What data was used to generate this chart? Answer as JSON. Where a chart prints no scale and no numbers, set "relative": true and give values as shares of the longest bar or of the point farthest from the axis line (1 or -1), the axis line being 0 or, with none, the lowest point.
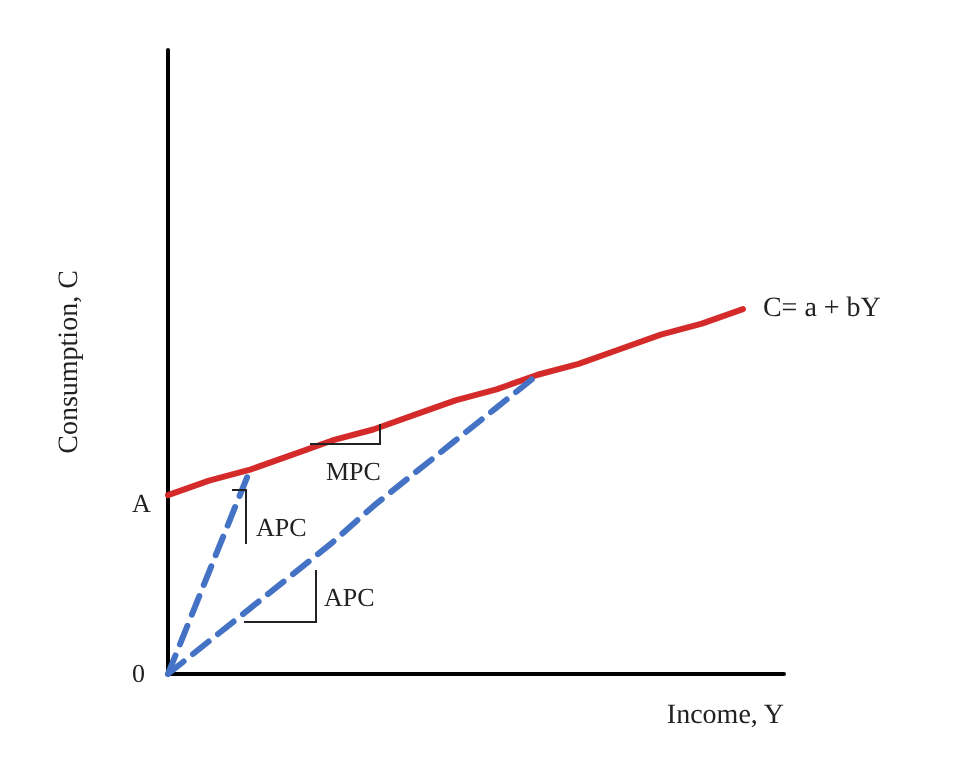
{
  "chart_data": {
    "type": "line",
    "relative": true,
    "xlabel": "Income, Y",
    "ylabel": "Consumption, C",
    "grid": false,
    "legend": false,
    "marker": "none",
    "categories": [
      null,
      null,
      null,
      null,
      null,
      null,
      null,
      null,
      null,
      null,
      null,
      null,
      null,
      null,
      null,
      null
    ],
    "series": [
      {
        "name": "C= a + bY",
        "color": "#d42a2a",
        "values": [
          0.49,
          0.53,
          0.56,
          0.6,
          0.64,
          0.67,
          0.71,
          0.75,
          0.78,
          0.82,
          0.85,
          0.89,
          0.93,
          0.96,
          1,
          null
        ],
        "line_style": "solid"
      },
      {
        "color": "#4472c4",
        "values": [
          0,
          0.28,
          0.56,
          null,
          null,
          null,
          null,
          null,
          null,
          null,
          null,
          null,
          null,
          null,
          null,
          null
        ],
        "line_style": "dashed"
      },
      {
        "color": "#4472c4",
        "values": [
          0,
          0.09,
          0.18,
          0.27,
          0.36,
          0.46,
          0.55,
          0.64,
          0.73,
          0.82,
          null,
          null,
          null,
          null,
          null,
          null
        ],
        "line_style": "dashed"
      }
    ],
    "annotations": [
      "A",
      "0",
      "MPC",
      "APC",
      "APC"
    ]
  }
}
